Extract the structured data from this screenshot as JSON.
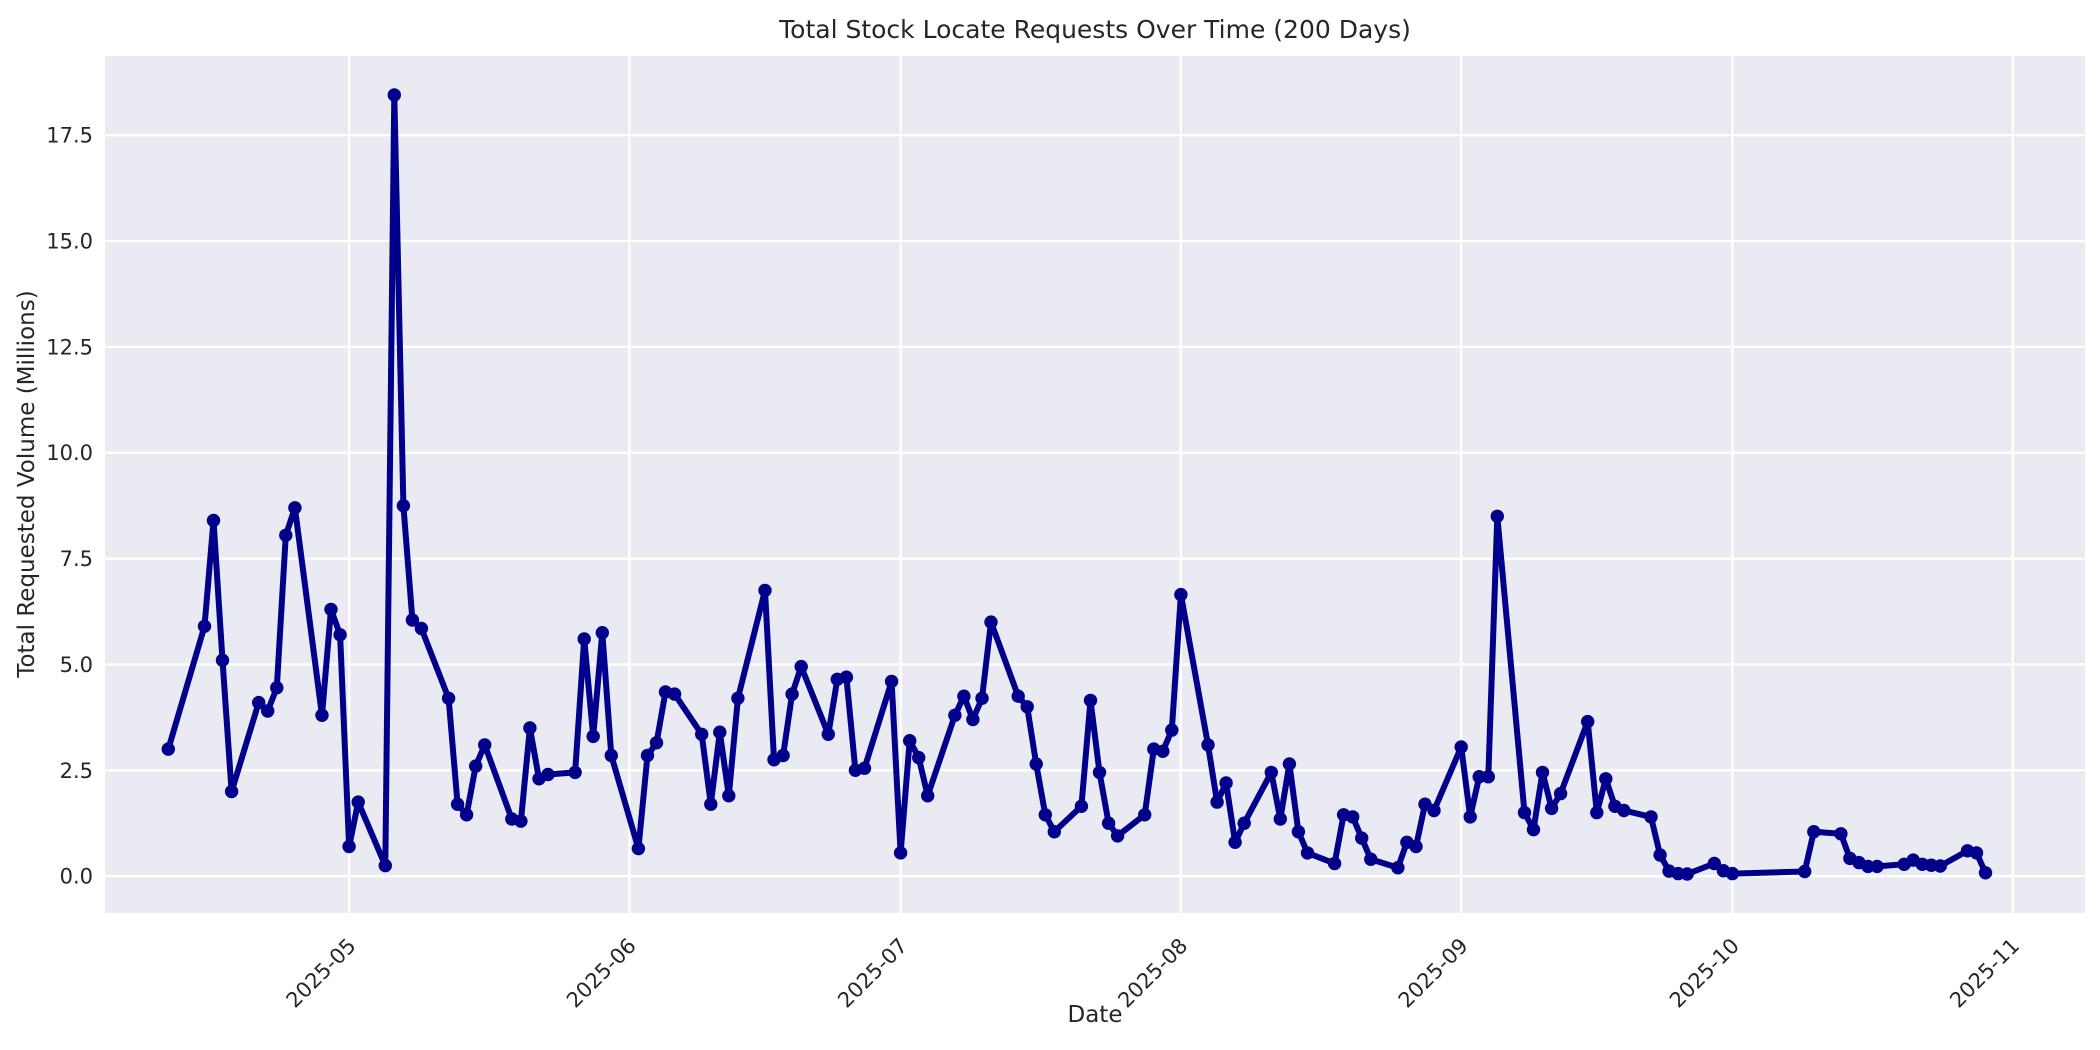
{
  "chart_data": {
    "type": "line",
    "title": "Total Stock Locate Requests Over Time (200 Days)",
    "xlabel": "Date",
    "ylabel": "Total Requested Volume (Millions)",
    "legend": false,
    "grid": true,
    "ylim": [
      -0.87,
      19.37
    ],
    "xlim": [
      "2025-04-04",
      "2025-11-09"
    ],
    "y_ticks": [
      "0.0",
      "2.5",
      "5.0",
      "7.5",
      "10.0",
      "12.5",
      "15.0",
      "17.5"
    ],
    "y_tick_values": [
      0,
      2.5,
      5,
      7.5,
      10,
      12.5,
      15,
      17.5
    ],
    "x_ticks": [
      {
        "label": "2025-05",
        "date": "2025-05-01"
      },
      {
        "label": "2025-06",
        "date": "2025-06-01"
      },
      {
        "label": "2025-07",
        "date": "2025-07-01"
      },
      {
        "label": "2025-08",
        "date": "2025-08-01"
      },
      {
        "label": "2025-09",
        "date": "2025-09-01"
      },
      {
        "label": "2025-10",
        "date": "2025-10-01"
      },
      {
        "label": "2025-11",
        "date": "2025-11-01"
      }
    ],
    "styles": {
      "line_color": "#00008b",
      "marker_color": "#00008b",
      "plot_bg": "#eaeaf2",
      "grid_color": "#ffffff",
      "text_color": "#262626",
      "fig_bg": "#ffffff"
    },
    "series": [
      {
        "name": "Total Stock Locate Requests",
        "x": [
          "2025-04-11",
          "2025-04-15",
          "2025-04-16",
          "2025-04-17",
          "2025-04-18",
          "2025-04-21",
          "2025-04-22",
          "2025-04-23",
          "2025-04-24",
          "2025-04-25",
          "2025-04-28",
          "2025-04-29",
          "2025-04-30",
          "2025-05-01",
          "2025-05-02",
          "2025-05-05",
          "2025-05-06",
          "2025-05-07",
          "2025-05-08",
          "2025-05-09",
          "2025-05-12",
          "2025-05-13",
          "2025-05-14",
          "2025-05-15",
          "2025-05-16",
          "2025-05-19",
          "2025-05-20",
          "2025-05-21",
          "2025-05-22",
          "2025-05-23",
          "2025-05-26",
          "2025-05-27",
          "2025-05-28",
          "2025-05-29",
          "2025-05-30",
          "2025-06-02",
          "2025-06-03",
          "2025-06-04",
          "2025-06-05",
          "2025-06-06",
          "2025-06-09",
          "2025-06-10",
          "2025-06-11",
          "2025-06-12",
          "2025-06-13",
          "2025-06-16",
          "2025-06-17",
          "2025-06-18",
          "2025-06-19",
          "2025-06-20",
          "2025-06-23",
          "2025-06-24",
          "2025-06-25",
          "2025-06-26",
          "2025-06-27",
          "2025-06-30",
          "2025-07-01",
          "2025-07-02",
          "2025-07-03",
          "2025-07-04",
          "2025-07-07",
          "2025-07-08",
          "2025-07-09",
          "2025-07-10",
          "2025-07-11",
          "2025-07-14",
          "2025-07-15",
          "2025-07-16",
          "2025-07-17",
          "2025-07-18",
          "2025-07-21",
          "2025-07-22",
          "2025-07-23",
          "2025-07-24",
          "2025-07-25",
          "2025-07-28",
          "2025-07-29",
          "2025-07-30",
          "2025-07-31",
          "2025-08-01",
          "2025-08-04",
          "2025-08-05",
          "2025-08-06",
          "2025-08-07",
          "2025-08-08",
          "2025-08-11",
          "2025-08-12",
          "2025-08-13",
          "2025-08-14",
          "2025-08-15",
          "2025-08-18",
          "2025-08-19",
          "2025-08-20",
          "2025-08-21",
          "2025-08-22",
          "2025-08-25",
          "2025-08-26",
          "2025-08-27",
          "2025-08-28",
          "2025-08-29",
          "2025-09-01",
          "2025-09-02",
          "2025-09-03",
          "2025-09-04",
          "2025-09-05",
          "2025-09-08",
          "2025-09-09",
          "2025-09-10",
          "2025-09-11",
          "2025-09-12",
          "2025-09-15",
          "2025-09-16",
          "2025-09-17",
          "2025-09-18",
          "2025-09-19",
          "2025-09-22",
          "2025-09-23",
          "2025-09-24",
          "2025-09-25",
          "2025-09-26",
          "2025-09-29",
          "2025-09-30",
          "2025-10-01",
          "2025-10-09",
          "2025-10-10",
          "2025-10-13",
          "2025-10-14",
          "2025-10-15",
          "2025-10-16",
          "2025-10-17",
          "2025-10-20",
          "2025-10-21",
          "2025-10-22",
          "2025-10-23",
          "2025-10-24",
          "2025-10-27",
          "2025-10-28",
          "2025-10-29"
        ],
        "y": [
          3.0,
          5.9,
          8.4,
          5.1,
          2.0,
          4.1,
          3.9,
          4.45,
          8.05,
          8.7,
          3.8,
          6.3,
          5.7,
          0.7,
          1.75,
          0.25,
          18.45,
          8.75,
          6.05,
          5.85,
          4.2,
          1.7,
          1.45,
          2.6,
          3.1,
          1.35,
          1.3,
          3.5,
          2.3,
          2.4,
          2.45,
          5.6,
          3.3,
          5.75,
          2.85,
          0.65,
          2.85,
          3.15,
          4.35,
          4.3,
          3.35,
          1.7,
          3.4,
          1.9,
          4.2,
          6.75,
          2.75,
          2.85,
          4.3,
          4.95,
          3.35,
          4.65,
          4.7,
          2.5,
          2.55,
          4.6,
          0.55,
          3.2,
          2.8,
          1.9,
          3.8,
          4.25,
          3.7,
          4.2,
          6.0,
          4.25,
          4.0,
          2.65,
          1.45,
          1.05,
          1.65,
          4.15,
          2.45,
          1.25,
          0.95,
          1.45,
          3.0,
          2.95,
          3.45,
          6.65,
          3.1,
          1.75,
          2.2,
          0.8,
          1.25,
          2.45,
          1.35,
          2.65,
          1.05,
          0.55,
          0.3,
          1.45,
          1.4,
          0.9,
          0.4,
          0.2,
          0.8,
          0.7,
          1.7,
          1.55,
          3.05,
          1.4,
          2.35,
          2.35,
          8.5,
          1.5,
          1.1,
          2.45,
          1.6,
          1.95,
          3.65,
          1.5,
          2.3,
          1.65,
          1.55,
          1.4,
          0.5,
          0.12,
          0.06,
          0.05,
          0.3,
          0.13,
          0.06,
          0.11,
          1.05,
          1.0,
          0.42,
          0.32,
          0.23,
          0.23,
          0.28,
          0.38,
          0.28,
          0.26,
          0.24,
          0.6,
          0.55,
          0.08
        ]
      }
    ]
  }
}
